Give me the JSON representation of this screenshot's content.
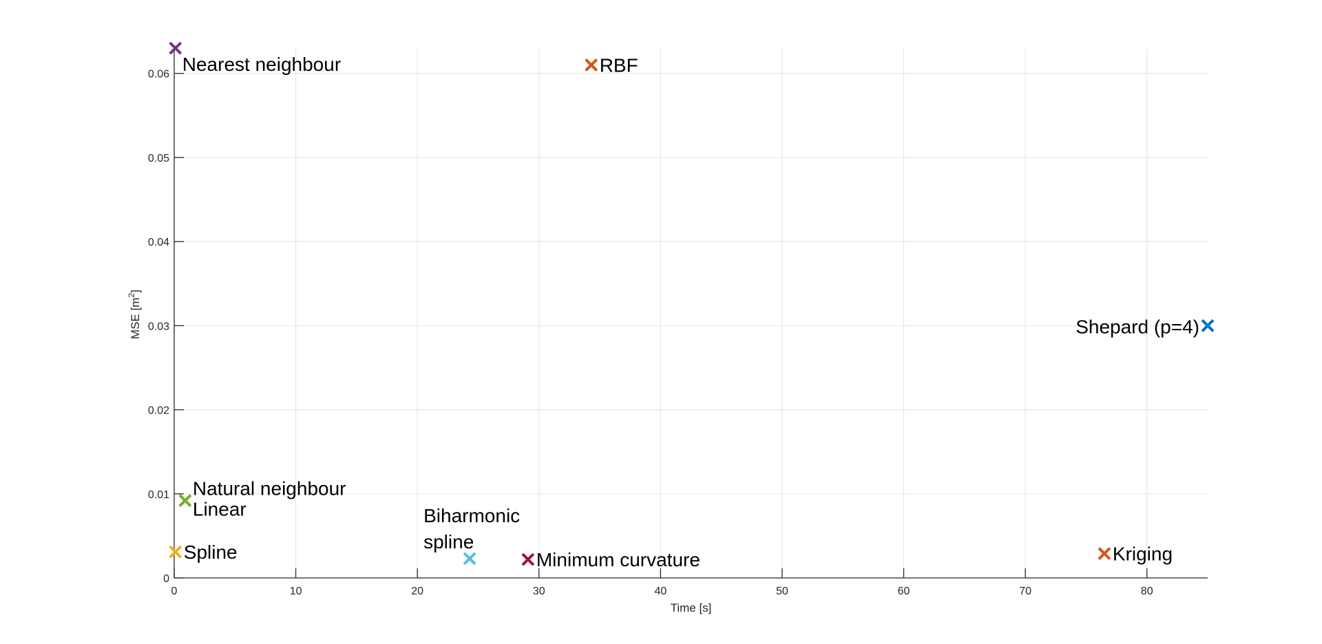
{
  "chart_data": {
    "type": "scatter",
    "title": "",
    "xlabel": "Time [s]",
    "ylabel_main": "MSE [m",
    "ylabel_sup": "2",
    "ylabel_end": "]",
    "xlim": [
      0,
      85
    ],
    "ylim": [
      0,
      0.063
    ],
    "xticks": [
      0,
      10,
      20,
      30,
      40,
      50,
      60,
      70,
      80
    ],
    "xtick_labels": [
      "0",
      "10",
      "20",
      "30",
      "40",
      "50",
      "60",
      "70",
      "80"
    ],
    "yticks": [
      0,
      0.01,
      0.02,
      0.03,
      0.04,
      0.05,
      0.06
    ],
    "ytick_labels": [
      "0",
      "0.01",
      "0.02",
      "0.03",
      "0.04",
      "0.05",
      "0.06"
    ],
    "grid": true,
    "marker": "x",
    "points": [
      {
        "label": [
          "Nearest neighbour"
        ],
        "x": 0.1,
        "y": 0.063,
        "color": "#7E2F8E",
        "label_anchor": "start",
        "label_side": "below-right"
      },
      {
        "label": [
          "RBF"
        ],
        "x": 34.3,
        "y": 0.061,
        "color": "#D95319",
        "label_anchor": "start",
        "label_side": "right"
      },
      {
        "label": [
          "Shepard (p=4)"
        ],
        "x": 85.0,
        "y": 0.03,
        "color": "#0072BD",
        "label_anchor": "end",
        "label_side": "left"
      },
      {
        "label": [
          "Natural neighbour",
          "Linear"
        ],
        "x": 0.9,
        "y": 0.0092,
        "color": "#77AC30",
        "label_anchor": "start",
        "label_side": "right-stack"
      },
      {
        "label": [
          "Spline"
        ],
        "x": 0.1,
        "y": 0.0031,
        "color": "#EDB120",
        "label_anchor": "start",
        "label_side": "right"
      },
      {
        "label": [
          "Biharmonic",
          "spline"
        ],
        "x": 24.3,
        "y": 0.0023,
        "color": "#4DBEEE",
        "label_anchor": "start",
        "label_side": "above-left"
      },
      {
        "label": [
          "Minimum curvature"
        ],
        "x": 29.1,
        "y": 0.0022,
        "color": "#A2142F",
        "label_anchor": "start",
        "label_side": "right"
      },
      {
        "label": [
          "Kriging"
        ],
        "x": 76.5,
        "y": 0.0029,
        "color": "#D95319",
        "label_anchor": "start",
        "label_side": "right"
      }
    ]
  }
}
